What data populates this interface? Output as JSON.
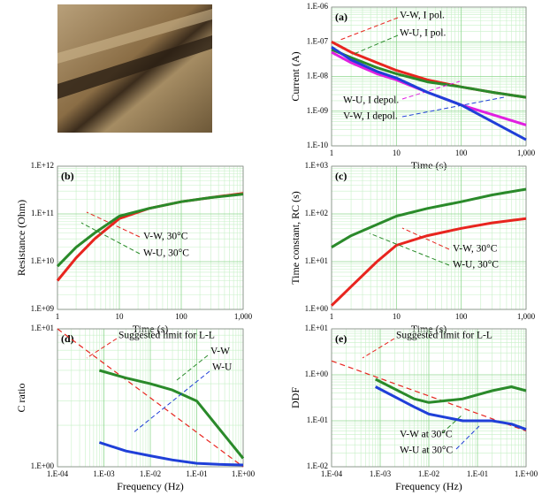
{
  "chart_data": [
    {
      "type": "line",
      "label": "(a)",
      "x_label": "Time (s)",
      "y_label": "Current (A)",
      "log_x": true,
      "log_y": true,
      "grid": true,
      "minor_grid": true,
      "xlim": [
        1,
        1000
      ],
      "xticks": [
        1,
        10,
        100,
        {
          "value": 1000,
          "label": "1,000"
        }
      ],
      "ylim": [
        1e-10,
        1e-06
      ],
      "yticks": [
        {
          "value": 1e-10,
          "label": "1.E-10"
        },
        {
          "value": 1e-09,
          "label": "1.E-09"
        },
        {
          "value": 1e-08,
          "label": "1.E-08"
        },
        {
          "value": 1e-07,
          "label": "1.E-07"
        },
        {
          "value": 1e-06,
          "label": "1.E-06"
        }
      ],
      "x": [
        1,
        2,
        5,
        10,
        30,
        100,
        300,
        1000
      ],
      "series": [
        {
          "name": "V-W, I pol.",
          "color": "#e8251f",
          "values": [
            1e-07,
            5e-08,
            2.5e-08,
            1.5e-08,
            8e-09,
            5e-09,
            3.5e-09,
            2.5e-09
          ]
        },
        {
          "name": "W-U, I pol.",
          "color": "#2a8a2a",
          "values": [
            6e-08,
            3.5e-08,
            1.8e-08,
            1.2e-08,
            7e-09,
            5e-09,
            3.5e-09,
            2.5e-09
          ]
        },
        {
          "name": "W-U, I depol.",
          "color": "#e020e0",
          "values": [
            5e-08,
            2.5e-08,
            1.2e-08,
            8e-09,
            3.5e-09,
            1.5e-09,
            8e-10,
            4e-10
          ]
        },
        {
          "name": "V-W, I depol.",
          "color": "#1f3fd8",
          "values": [
            7e-08,
            3e-08,
            1.4e-08,
            9e-09,
            3.5e-09,
            1.5e-09,
            5e-10,
            1.5e-10
          ]
        }
      ]
    },
    {
      "type": "line",
      "label": "(b)",
      "x_label": "Time (s)",
      "y_label": "Resistance (Ohm)",
      "log_x": true,
      "log_y": true,
      "grid": true,
      "minor_grid": true,
      "xlim": [
        1,
        1000
      ],
      "xticks": [
        1,
        10,
        100,
        {
          "value": 1000,
          "label": "1,000"
        }
      ],
      "ylim": [
        1000000000.0,
        1000000000000.0
      ],
      "yticks": [
        {
          "value": 1000000000.0,
          "label": "1.E+09"
        },
        {
          "value": 10000000000.0,
          "label": "1.E+10"
        },
        {
          "value": 100000000000.0,
          "label": "1.E+11"
        },
        {
          "value": 1000000000000.0,
          "label": "1.E+12"
        }
      ],
      "x": [
        1,
        2,
        4,
        10,
        30,
        100,
        300,
        1000
      ],
      "series": [
        {
          "name": "V-W, 30°C",
          "color": "#e8251f",
          "values": [
            4000000000.0,
            12000000000.0,
            30000000000.0,
            80000000000.0,
            130000000000.0,
            180000000000.0,
            220000000000.0,
            270000000000.0
          ]
        },
        {
          "name": "W-U, 30°C",
          "color": "#2a8a2a",
          "values": [
            8000000000.0,
            20000000000.0,
            40000000000.0,
            90000000000.0,
            130000000000.0,
            180000000000.0,
            220000000000.0,
            260000000000.0
          ]
        }
      ]
    },
    {
      "type": "line",
      "label": "(c)",
      "x_label": "Time (s)",
      "y_label": "Time constant, RC (s)",
      "log_x": true,
      "log_y": true,
      "grid": true,
      "minor_grid": true,
      "xlim": [
        1,
        1000
      ],
      "xticks": [
        1,
        10,
        100,
        {
          "value": 1000,
          "label": "1,000"
        }
      ],
      "ylim": [
        1,
        1000
      ],
      "yticks": [
        {
          "value": 1,
          "label": "1.E+00"
        },
        {
          "value": 10,
          "label": "1.E+01"
        },
        {
          "value": 100,
          "label": "1.E+02"
        },
        {
          "value": 1000,
          "label": "1.E+03"
        }
      ],
      "x": [
        1,
        2,
        5,
        10,
        30,
        100,
        300,
        1000
      ],
      "series": [
        {
          "name": "V-W, 30°C",
          "color": "#e8251f",
          "values": [
            1.2,
            3,
            10,
            22,
            35,
            50,
            65,
            80
          ]
        },
        {
          "name": "W-U, 30°C",
          "color": "#2a8a2a",
          "values": [
            20,
            35,
            60,
            90,
            130,
            180,
            250,
            330
          ]
        }
      ]
    },
    {
      "type": "line",
      "label": "(d)",
      "x_label": "Frequency (Hz)",
      "y_label": "C ratio",
      "log_x": true,
      "log_y": true,
      "grid": true,
      "minor_grid": true,
      "xlim": [
        0.0001,
        1
      ],
      "xticks": [
        {
          "value": 0.0001,
          "label": "1.E-04"
        },
        {
          "value": 0.001,
          "label": "1.E-03"
        },
        {
          "value": 0.01,
          "label": "1.E-02"
        },
        {
          "value": 0.1,
          "label": "1.E-01"
        },
        {
          "value": 1,
          "label": "1.E+00"
        }
      ],
      "ylim": [
        1,
        10
      ],
      "yticks": [
        {
          "value": 1,
          "label": "1.E+00"
        },
        {
          "value": 10,
          "label": "1.E+01"
        }
      ],
      "x": [
        0.0001,
        0.0008,
        0.003,
        0.01,
        0.03,
        0.1,
        0.3,
        1
      ],
      "series": [
        {
          "name": "Suggested limit for L-L",
          "color": "#e8251f",
          "dash": true,
          "values": [
            10,
            null,
            null,
            null,
            null,
            null,
            null,
            1
          ]
        },
        {
          "name": "V-W",
          "color": "#2a8a2a",
          "values": [
            null,
            5,
            4.4,
            4,
            3.6,
            3,
            1.9,
            1.15
          ]
        },
        {
          "name": "W-U",
          "color": "#1f3fd8",
          "values": [
            null,
            1.5,
            1.3,
            1.2,
            1.12,
            1.06,
            1.04,
            1.03
          ]
        }
      ]
    },
    {
      "type": "line",
      "label": "(e)",
      "x_label": "Frequency (Hz)",
      "y_label": "DDF",
      "log_x": true,
      "log_y": true,
      "grid": true,
      "minor_grid": true,
      "xlim": [
        0.0001,
        1
      ],
      "xticks": [
        {
          "value": 0.0001,
          "label": "1.E-04"
        },
        {
          "value": 0.001,
          "label": "1.E-03"
        },
        {
          "value": 0.01,
          "label": "1.E-02"
        },
        {
          "value": 0.1,
          "label": "1.E-01"
        },
        {
          "value": 1,
          "label": "1.E+00"
        }
      ],
      "ylim": [
        0.01,
        10
      ],
      "yticks": [
        {
          "value": 0.01,
          "label": "1.E-02"
        },
        {
          "value": 0.1,
          "label": "1.E-01"
        },
        {
          "value": 1,
          "label": "1.E+00"
        },
        {
          "value": 10,
          "label": "1.E+01"
        }
      ],
      "x": [
        0.0001,
        0.0008,
        0.005,
        0.01,
        0.05,
        0.2,
        0.5,
        1
      ],
      "series": [
        {
          "name": "Suggested limit for L-L",
          "color": "#e8251f",
          "dash": true,
          "values": [
            2,
            null,
            null,
            null,
            null,
            null,
            null,
            0.06
          ]
        },
        {
          "name": "V-W at 30°C",
          "color": "#2a8a2a",
          "values": [
            null,
            0.8,
            0.3,
            0.25,
            0.3,
            0.45,
            0.55,
            0.45
          ]
        },
        {
          "name": "W-U at 30°C",
          "color": "#1f3fd8",
          "values": [
            null,
            0.55,
            0.2,
            0.14,
            0.1,
            0.1,
            0.085,
            0.065
          ]
        }
      ]
    }
  ]
}
